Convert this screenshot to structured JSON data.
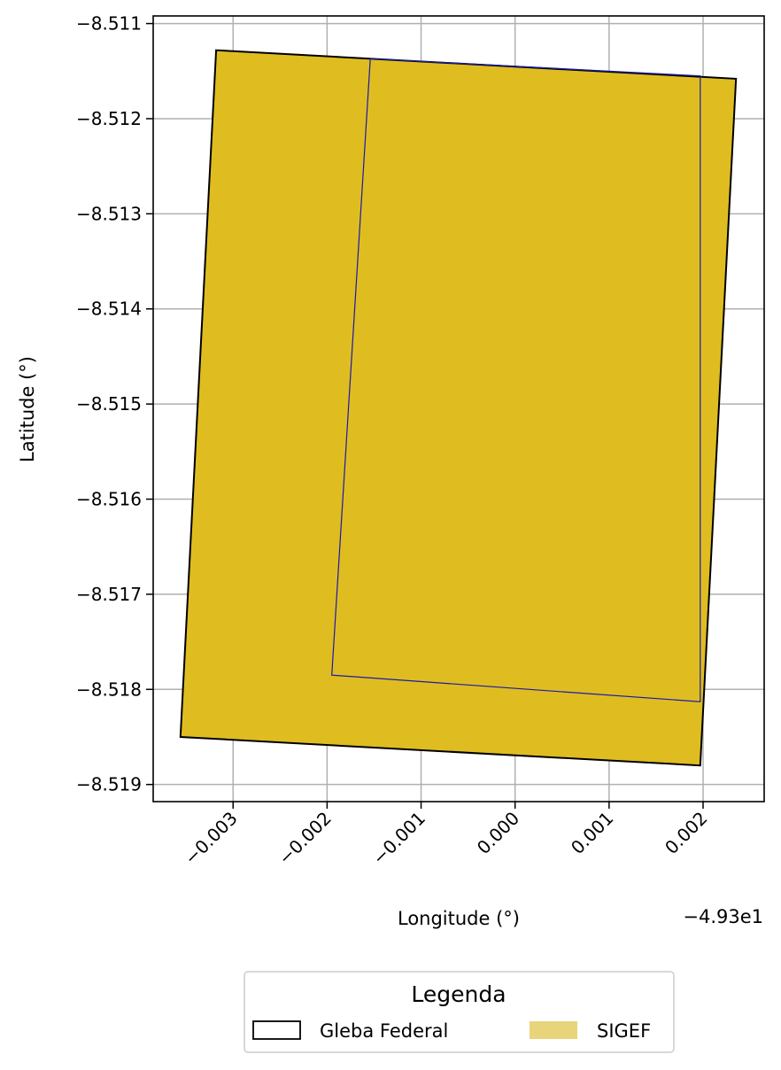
{
  "chart_data": {
    "type": "map",
    "xlabel": "Longitude (°)",
    "ylabel": "Latitude (°)",
    "x_offset_label": "−4.93e1",
    "x_ticks": [
      -0.003,
      -0.002,
      -0.001,
      0.0,
      0.001,
      0.002
    ],
    "x_tick_labels": [
      "−0.003",
      "−0.002",
      "−0.001",
      "0.000",
      "0.001",
      "0.002"
    ],
    "y_ticks": [
      -8.511,
      -8.512,
      -8.513,
      -8.514,
      -8.515,
      -8.516,
      -8.517,
      -8.518,
      -8.519
    ],
    "y_tick_labels": [
      "−8.511",
      "−8.512",
      "−8.513",
      "−8.514",
      "−8.515",
      "−8.516",
      "−8.517",
      "−8.518",
      "−8.519"
    ],
    "xlim": [
      -0.00385,
      0.00265
    ],
    "ylim": [
      -8.51918,
      -8.51092
    ],
    "grid": true,
    "colors": {
      "sigef_fill": "#dfbd21",
      "gleba_edge": "#000000",
      "inner_edge": "#1a1aa8",
      "grid": "#b0b0b0",
      "legend_sigef_swatch": "#e8d47a"
    },
    "layers": [
      {
        "name": "SIGEF",
        "role": "outer",
        "polygon": [
          [
            -0.00318,
            -8.51128
          ],
          [
            0.00235,
            -8.51158
          ],
          [
            0.00197,
            -8.5188
          ],
          [
            -0.00356,
            -8.5185
          ]
        ]
      },
      {
        "name": "Gleba Federal",
        "role": "inner",
        "polygon": [
          [
            -0.00154,
            -8.51137
          ],
          [
            0.00197,
            -8.51155
          ],
          [
            0.00197,
            -8.51813
          ],
          [
            -0.00195,
            -8.51785
          ]
        ]
      }
    ],
    "legend": {
      "title": "Legenda",
      "placement": "bottom-center",
      "entries": [
        {
          "label": "Gleba Federal",
          "swatch": "outline"
        },
        {
          "label": "SIGEF",
          "swatch": "filled"
        }
      ]
    }
  }
}
